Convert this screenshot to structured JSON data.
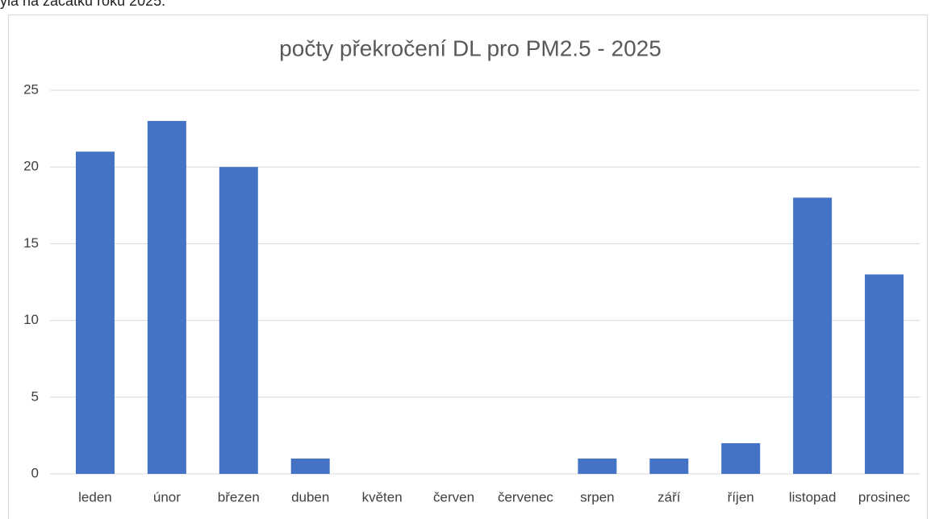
{
  "page_text": "yla na začátku roku 2025.",
  "chart_data": {
    "type": "bar",
    "title": "počty překročení DL pro PM2.5 - 2025",
    "categories": [
      "leden",
      "únor",
      "březen",
      "duben",
      "květen",
      "červen",
      "červenec",
      "srpen",
      "září",
      "říjen",
      "listopad",
      "prosinec"
    ],
    "values": [
      21,
      23,
      20,
      1,
      0,
      0,
      0,
      1,
      1,
      2,
      18,
      13
    ],
    "color": "#4472c4",
    "ylim": [
      0,
      25
    ],
    "yticks": [
      0,
      5,
      10,
      15,
      20,
      25
    ],
    "grid": true
  }
}
